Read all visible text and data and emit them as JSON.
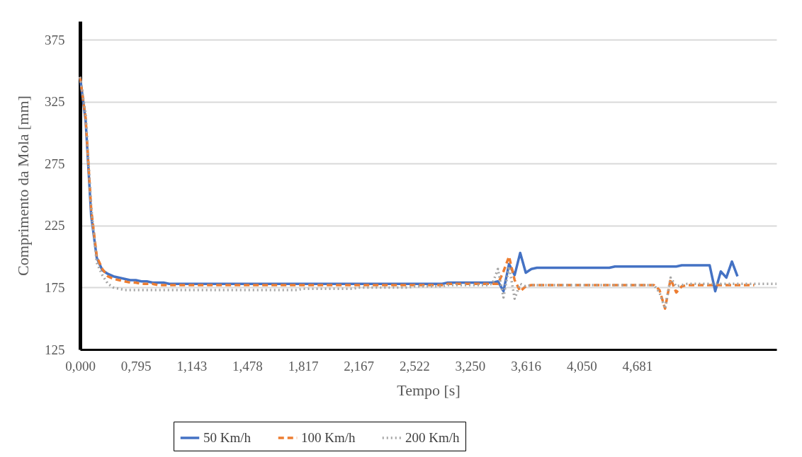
{
  "chart_data": {
    "type": "line",
    "xlabel": "Tempo [s]",
    "ylabel": "Comprimento da Mola [mm]",
    "categories": [
      "0,000",
      null,
      null,
      null,
      null,
      null,
      null,
      null,
      null,
      null,
      "0,795",
      null,
      null,
      null,
      null,
      null,
      null,
      null,
      null,
      null,
      "1,143",
      null,
      null,
      null,
      null,
      null,
      null,
      null,
      null,
      null,
      "1,478",
      null,
      null,
      null,
      null,
      null,
      null,
      null,
      null,
      null,
      "1,817",
      null,
      null,
      null,
      null,
      null,
      null,
      null,
      null,
      null,
      "2,167",
      null,
      null,
      null,
      null,
      null,
      null,
      null,
      null,
      null,
      "2,522",
      null,
      null,
      null,
      null,
      null,
      null,
      null,
      null,
      null,
      "3,250",
      null,
      null,
      null,
      null,
      null,
      null,
      null,
      null,
      null,
      "3,616",
      null,
      null,
      null,
      null,
      null,
      null,
      null,
      null,
      null,
      "4,050",
      null,
      null,
      null,
      null,
      null,
      null,
      null,
      null,
      null,
      "4,681",
      null,
      null,
      null,
      null,
      null,
      null,
      null,
      null,
      null,
      null,
      null,
      null,
      null,
      null,
      null,
      null,
      null,
      null,
      null,
      null,
      null,
      null,
      null,
      null,
      null
    ],
    "series": [
      {
        "name": "50 Km/h",
        "color": "#4472c4",
        "line_style": "solid",
        "values": [
          345,
          310,
          233,
          199,
          189,
          186,
          184,
          183,
          182,
          181,
          181,
          180,
          180,
          179,
          179,
          179,
          178,
          178,
          178,
          178,
          178,
          178,
          178,
          178,
          178,
          178,
          178,
          178,
          178,
          178,
          178,
          178,
          178,
          178,
          178,
          178,
          178,
          178,
          178,
          178,
          178,
          178,
          178,
          178,
          178,
          178,
          178,
          178,
          178,
          178,
          178,
          178,
          178,
          178,
          178,
          178,
          178,
          178,
          178,
          178,
          178,
          178,
          178,
          178,
          178,
          178,
          179,
          179,
          179,
          179,
          179,
          179,
          179,
          179,
          179,
          180,
          172,
          194,
          185,
          203,
          187,
          190,
          191,
          191,
          191,
          191,
          191,
          191,
          191,
          191,
          191,
          191,
          191,
          191,
          191,
          191,
          192,
          192,
          192,
          192,
          192,
          192,
          192,
          192,
          192,
          192,
          192,
          192,
          193,
          193,
          193,
          193,
          193,
          193,
          172,
          188,
          183,
          196,
          184,
          null,
          null,
          null,
          null,
          null,
          null,
          null
        ]
      },
      {
        "name": "100 Km/h",
        "color": "#ed7d31",
        "line_style": "dashed",
        "values": [
          345,
          312,
          238,
          200,
          190,
          184,
          182,
          181,
          180,
          179,
          179,
          178,
          178,
          178,
          177,
          177,
          177,
          177,
          177,
          177,
          177,
          177,
          177,
          177,
          177,
          177,
          177,
          177,
          177,
          177,
          177,
          177,
          177,
          177,
          177,
          177,
          177,
          177,
          177,
          177,
          177,
          177,
          177,
          177,
          177,
          177,
          177,
          177,
          177,
          177,
          177,
          177,
          177,
          177,
          177,
          177,
          177,
          177,
          177,
          177,
          177,
          177,
          177,
          177,
          177,
          177,
          178,
          178,
          178,
          178,
          178,
          178,
          178,
          178,
          178,
          178,
          188,
          200,
          181,
          172,
          176,
          177,
          177,
          177,
          177,
          177,
          177,
          177,
          177,
          177,
          177,
          177,
          177,
          177,
          177,
          177,
          177,
          177,
          177,
          177,
          177,
          177,
          177,
          177,
          173,
          158,
          182,
          171,
          176,
          177,
          177,
          177,
          177,
          177,
          177,
          177,
          177,
          177,
          177,
          177,
          177,
          177,
          null,
          null,
          null,
          null
        ]
      },
      {
        "name": "200 Km/h",
        "color": "#a5a5a5",
        "line_style": "dotted",
        "values": [
          345,
          315,
          240,
          195,
          185,
          178,
          175,
          174,
          173,
          173,
          173,
          173,
          173,
          173,
          173,
          173,
          173,
          173,
          173,
          173,
          173,
          173,
          173,
          173,
          173,
          173,
          173,
          173,
          173,
          173,
          173,
          173,
          173,
          173,
          173,
          173,
          173,
          173,
          173,
          173,
          174,
          174,
          174,
          174,
          174,
          174,
          174,
          174,
          174,
          174,
          175,
          175,
          175,
          175,
          175,
          175,
          175,
          175,
          175,
          175,
          176,
          176,
          176,
          176,
          176,
          176,
          177,
          177,
          177,
          177,
          177,
          177,
          177,
          177,
          178,
          190,
          167,
          192,
          166,
          178,
          176,
          177,
          177,
          177,
          177,
          177,
          177,
          177,
          177,
          177,
          177,
          177,
          177,
          177,
          177,
          177,
          177,
          177,
          177,
          177,
          177,
          177,
          177,
          177,
          171,
          158,
          183,
          176,
          177,
          178,
          178,
          178,
          178,
          178,
          178,
          178,
          178,
          178,
          178,
          178,
          178,
          178,
          178,
          178,
          178,
          178
        ]
      }
    ],
    "ylim": [
      125,
      390
    ],
    "yticks": [
      125,
      175,
      225,
      275,
      325,
      375
    ],
    "grid": "y",
    "legend": "bottom"
  }
}
